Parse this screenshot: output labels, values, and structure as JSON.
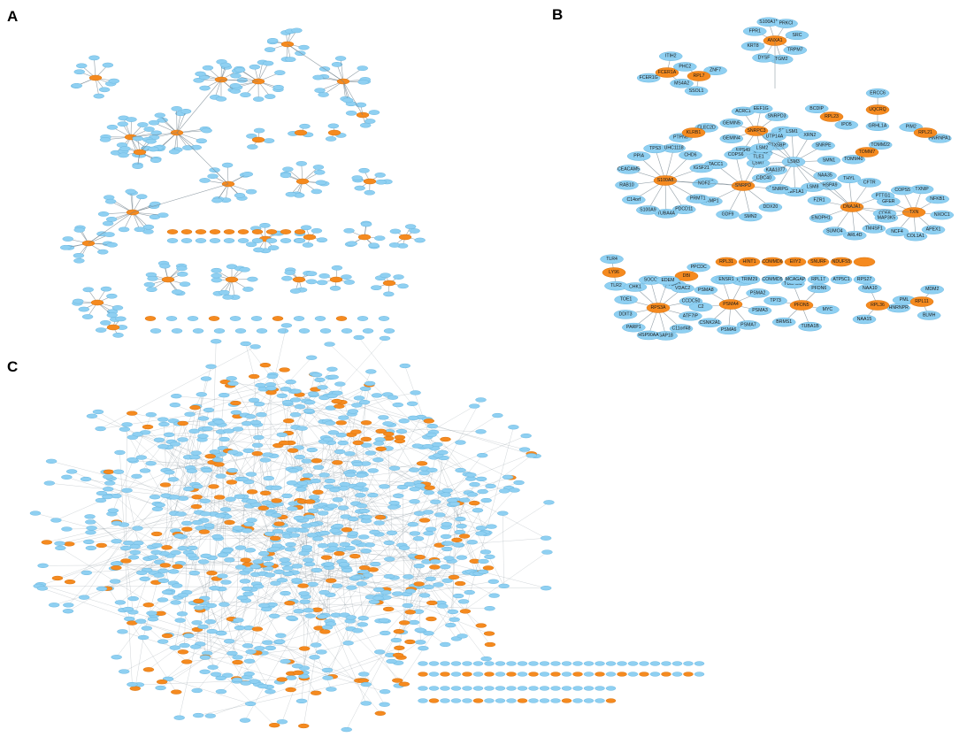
{
  "panels": [
    {
      "letter": "A"
    },
    {
      "letter": "B"
    },
    {
      "letter": "C"
    }
  ],
  "colors": {
    "blue_node": "#8fd0f2",
    "orange_node": "#f58a1f",
    "edge": "#6f7f8a"
  },
  "panel_b": {
    "clusters": [
      {
        "hub": "SNRPC3",
        "hub_color": "orange",
        "leaves": [
          "SIPI",
          "STX5BP",
          "STRAP",
          "EPS49",
          "GEMIN4",
          "GEMIN5",
          "ACRC1",
          "EEF1G",
          "SNRPD3"
        ]
      },
      {
        "hub": "LSM3",
        "hub_color": "blue",
        "leaves": [
          "LSM8",
          "EEF1A1",
          "LSM1C",
          "CDC40",
          "LSM7",
          "LSM2",
          "UTP14A",
          "LSM1",
          "XRN2",
          "SNRPE",
          "SMN1",
          "NAA35"
        ]
      },
      {
        "hub": "SNRPD",
        "hub_color": "orange",
        "leaves": [
          "GDF9",
          "CRMP1",
          "DDX46",
          "TACC1",
          "COPS6",
          "TLE1",
          "KAA1377",
          "SNRPG",
          "DDX20",
          "SMN2"
        ]
      },
      {
        "hub": "S100A8",
        "hub_color": "orange",
        "leaves": [
          "RAB10",
          "CEACAM5",
          "PPIA",
          "TPS3",
          "UHC1118",
          "CHD6",
          "IGSF21",
          "NOF2",
          "PRMT1",
          "PDCD11",
          "TUBA4A",
          "S100A9",
          "C14orf"
        ]
      },
      {
        "hub": "DNAJA1",
        "hub_color": "orange",
        "leaves": [
          "HSPA9",
          "THYL",
          "CFTR",
          "PTTG1",
          "CD58",
          "TM4SF1",
          "ARL4D",
          "SUMO4",
          "ENOPH1",
          "FZR1"
        ]
      },
      {
        "hub": "TXN",
        "hub_color": "orange",
        "leaves": [
          "TXNIP",
          "NFKB1",
          "NXOC1",
          "APEX1",
          "COL1A1",
          "NCF4",
          "MAP3K5",
          "GFER",
          "COPS5"
        ]
      },
      {
        "hub": "ANXA1",
        "hub_color": "orange",
        "leaves": [
          "SRC",
          "TRPM7",
          "TGM2",
          "DYSF",
          "KRT8",
          "FPR1",
          "S100A11",
          "PRKCI"
        ]
      },
      {
        "hub": "FCER1A",
        "hub_color": "orange",
        "leaves": [
          "MS4A2",
          "FCER1G",
          "ITIH2"
        ]
      },
      {
        "hub": "RPL7",
        "hub_color": "orange",
        "leaves": [
          "SSOL1",
          "PHC2",
          "ZNF7"
        ]
      },
      {
        "hub": "KLRB1",
        "hub_color": "orange",
        "leaves": [
          "PTPN6",
          "CLEC2D"
        ]
      },
      {
        "hub": "RPL23",
        "hub_color": "orange",
        "leaves": [
          "BCDIP",
          "IPO5"
        ]
      },
      {
        "hub": "UQCRQ",
        "hub_color": "orange",
        "leaves": [
          "ERCC6",
          "GRHL1A"
        ]
      },
      {
        "hub": "TOMM7",
        "hub_color": "orange",
        "leaves": [
          "TOMM22",
          "TOMM40"
        ]
      },
      {
        "hub": "RPL21",
        "hub_color": "orange",
        "leaves": [
          "HNRNPA1",
          "PIM2"
        ]
      },
      {
        "hub": "LY96",
        "hub_color": "orange",
        "leaves": [
          "TLR2",
          "TLR4"
        ]
      },
      {
        "hub": "DBI",
        "hub_color": "orange",
        "leaves": [
          "TSPO",
          "PPCDC"
        ]
      },
      {
        "hub": "RPS3A",
        "hub_color": "orange",
        "leaves": [
          "TOE1",
          "CHK1",
          "SOCC",
          "EDEM",
          "VDAC2",
          "CCDC50",
          "ATF7IP",
          "C11orf48",
          "SAP18",
          "HSP90AA",
          "PARP1",
          "DDIT3"
        ]
      },
      {
        "hub": "PSMA4",
        "hub_color": "orange",
        "leaves": [
          "PLK1",
          "PSMA1",
          "PSMA2",
          "PSMA3",
          "PSMA7",
          "PSMA6",
          "CSNK2A1",
          "C2",
          "PSMA8"
        ]
      },
      {
        "hub": "PFDN5",
        "hub_color": "orange",
        "leaves": [
          "PFDN6",
          "MYC",
          "TUBA1B",
          "BRMS1",
          "TP73",
          "TUBA3C"
        ]
      },
      {
        "hub": "RPL36",
        "hub_color": "orange",
        "leaves": [
          "HNRNPR",
          "NAA15",
          "NAA10"
        ]
      },
      {
        "hub": "RPL11",
        "hub_color": "orange",
        "leaves": [
          "BLMH",
          "PML",
          "MDM2"
        ]
      }
    ],
    "pairs": [
      {
        "top": "RPL31",
        "bottom": "ENSR1",
        "top_color": "orange"
      },
      {
        "top": "HINT1",
        "bottom": "TRIM29",
        "top_color": "orange"
      },
      {
        "top": "COMMD6",
        "bottom": "COMMD5",
        "top_color": "orange"
      },
      {
        "top": "EIIY2",
        "bottom": "MCAGAP",
        "top_color": "orange"
      },
      {
        "top": "SNURF",
        "bottom": "RPL17",
        "top_color": "orange"
      },
      {
        "top": "NDUFS5",
        "bottom": "ATP5C1",
        "top_color": "orange"
      },
      {
        "top": "",
        "bottom": "RPS27",
        "top_color": "orange"
      }
    ]
  }
}
